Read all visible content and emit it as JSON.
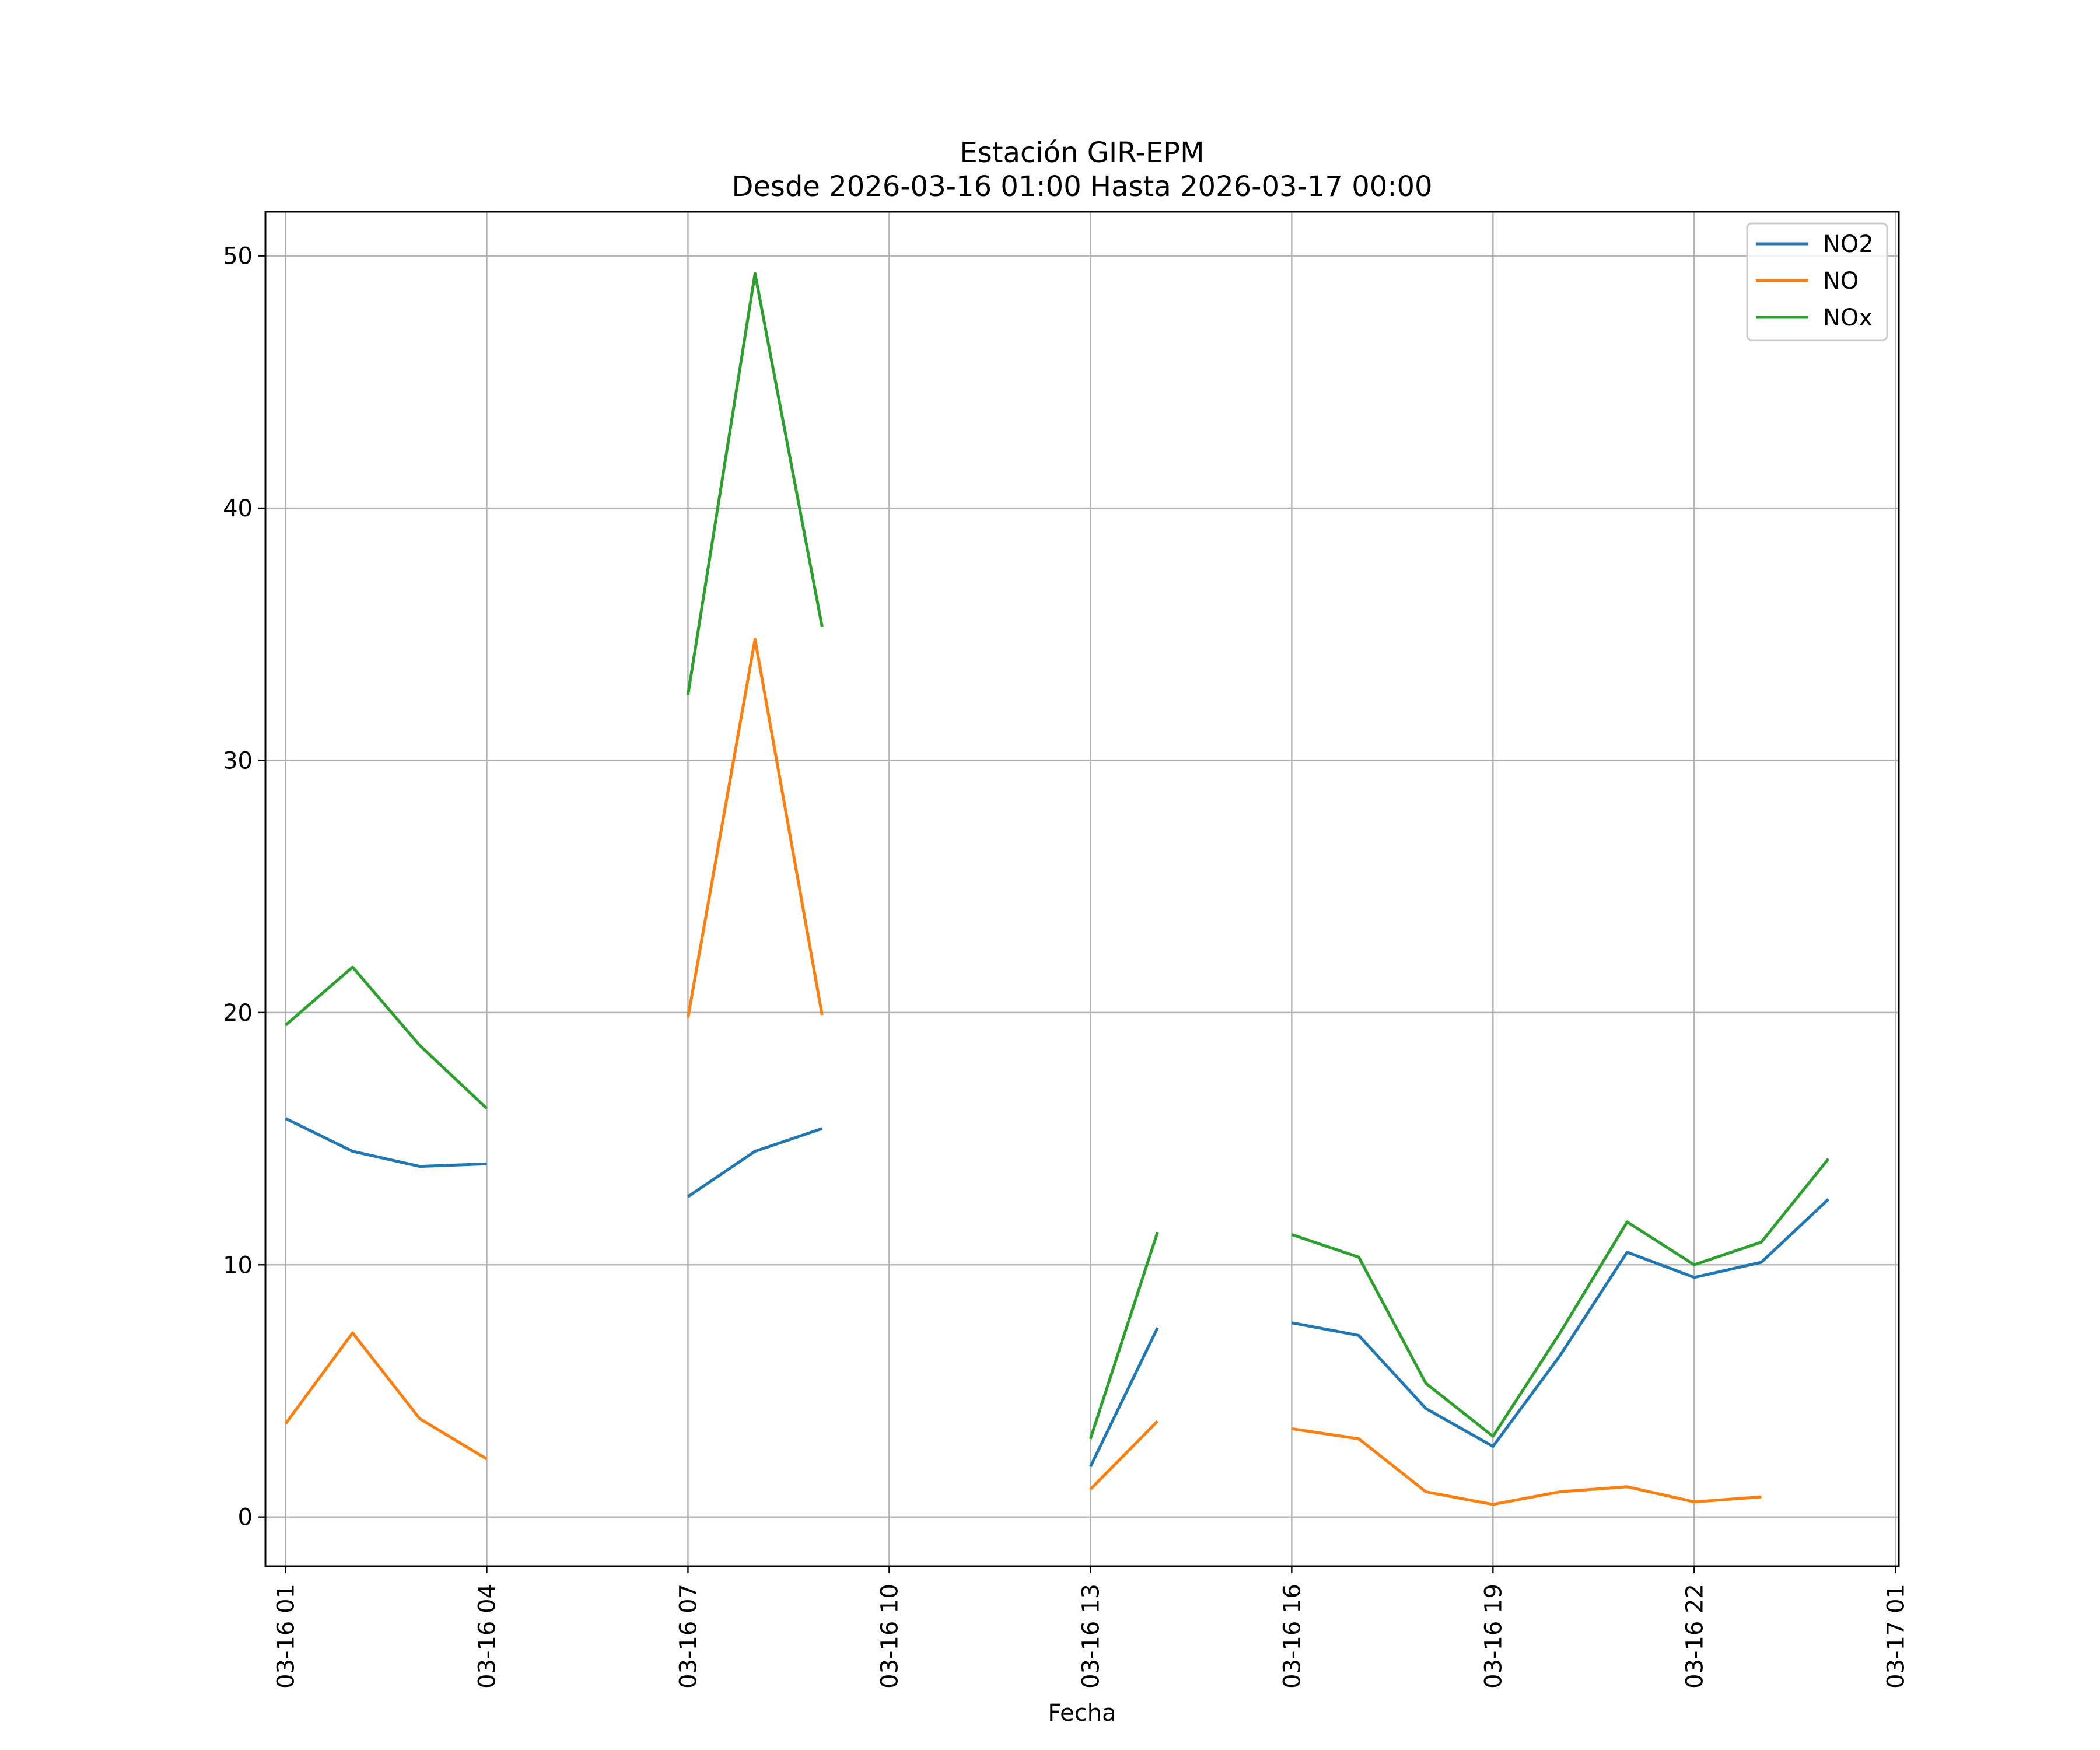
{
  "chart_data": {
    "type": "line",
    "title": "Estación GIR-EPM",
    "subtitle": "Desde 2026-03-16 01:00 Hasta 2026-03-17 00:00",
    "xlabel": "Fecha",
    "ylabel": "",
    "x": [
      "03-16 01",
      "03-16 02",
      "03-16 03",
      "03-16 04",
      "03-16 05",
      "03-16 06",
      "03-16 07",
      "03-16 08",
      "03-16 09",
      "03-16 10",
      "03-16 11",
      "03-16 12",
      "03-16 13",
      "03-16 14",
      "03-16 15",
      "03-16 16",
      "03-16 17",
      "03-16 18",
      "03-16 19",
      "03-16 20",
      "03-16 21",
      "03-16 22",
      "03-16 23",
      "03-17 00"
    ],
    "series": [
      {
        "name": "NO2",
        "color": "#1f77b4",
        "values": [
          15.8,
          14.5,
          13.9,
          14.0,
          null,
          null,
          12.7,
          14.5,
          15.4,
          null,
          null,
          null,
          2.0,
          7.5,
          null,
          7.7,
          7.2,
          4.3,
          2.8,
          6.4,
          10.5,
          9.5,
          10.1,
          12.6
        ]
      },
      {
        "name": "NO",
        "color": "#ff7f0e",
        "values": [
          3.7,
          7.3,
          3.9,
          2.3,
          null,
          null,
          19.8,
          34.8,
          19.9,
          null,
          null,
          null,
          1.1,
          3.8,
          null,
          3.5,
          3.1,
          1.0,
          0.5,
          1.0,
          1.2,
          0.6,
          0.8,
          null
        ]
      },
      {
        "name": "NOx",
        "color": "#2ca02c",
        "values": [
          19.5,
          21.8,
          18.7,
          16.2,
          null,
          null,
          32.6,
          49.3,
          35.3,
          null,
          null,
          null,
          3.1,
          11.3,
          null,
          11.2,
          10.3,
          5.3,
          3.2,
          7.3,
          11.7,
          10.0,
          10.9,
          14.2
        ]
      }
    ],
    "xticks": [
      "03-16 01",
      "03-16 04",
      "03-16 07",
      "03-16 10",
      "03-16 13",
      "03-16 16",
      "03-16 19",
      "03-16 22",
      "03-17 01"
    ],
    "yticks": [
      0,
      10,
      20,
      30,
      40,
      50
    ],
    "ylim": [
      -1.95,
      51.75
    ],
    "xlim": [
      "03-16 00",
      "03-17 01"
    ],
    "grid": true,
    "legend": "top-right"
  }
}
